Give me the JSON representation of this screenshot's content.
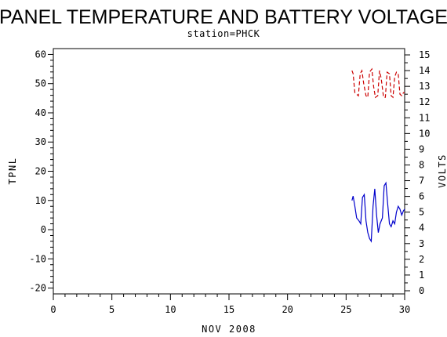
{
  "chart_data": {
    "type": "line",
    "title": "PANEL TEMPERATURE AND BATTERY VOLTAGE",
    "subtitle": "station=PHCK",
    "xlabel": "NOV 2008",
    "ylabel_left": "TPNL",
    "ylabel_right": "VOLTS",
    "xlim": [
      0,
      30
    ],
    "ylim_left": [
      -22,
      62
    ],
    "ylim_right": [
      -0.2,
      15.4
    ],
    "x_ticks": [
      "0",
      "5",
      "10",
      "15",
      "20",
      "25",
      "30"
    ],
    "y_left_ticks": [
      "-20",
      "-10",
      "0",
      "10",
      "20",
      "30",
      "40",
      "50",
      "60"
    ],
    "y_right_ticks": [
      "0",
      "1",
      "2",
      "3",
      "4",
      "5",
      "6",
      "7",
      "8",
      "9",
      "10",
      "11",
      "12",
      "13",
      "14",
      "15"
    ],
    "grid": false,
    "series": [
      {
        "axis": "left",
        "color": "#0000cc",
        "style": "solid",
        "x": [
          25.5,
          25.6,
          25.75,
          25.9,
          26.1,
          26.25,
          26.4,
          26.55,
          26.7,
          26.85,
          27.0,
          27.15,
          27.3,
          27.45,
          27.6,
          27.75,
          27.9,
          28.1,
          28.25,
          28.4,
          28.55,
          28.7,
          28.85,
          29.0,
          29.15,
          29.3,
          29.45,
          29.6,
          29.75,
          29.9,
          30.0
        ],
        "y": [
          10,
          11.5,
          8,
          4,
          3,
          2,
          11,
          12,
          3,
          -1,
          -3,
          -4,
          8,
          14,
          5,
          -1,
          2,
          4,
          15,
          16,
          9,
          2,
          1,
          3,
          2,
          6,
          8,
          7,
          5,
          6.5,
          7
        ]
      },
      {
        "axis": "right",
        "color": "#cc0000",
        "style": "dashed",
        "x": [
          25.5,
          25.6,
          25.75,
          25.9,
          26.05,
          26.2,
          26.35,
          26.5,
          26.7,
          26.85,
          27.0,
          27.2,
          27.35,
          27.5,
          27.7,
          27.85,
          28.0,
          28.2,
          28.35,
          28.5,
          28.7,
          28.85,
          29.0,
          29.15,
          29.3,
          29.45,
          29.6,
          29.75,
          29.9,
          30.0
        ],
        "y": [
          14.0,
          13.8,
          12.6,
          12.5,
          12.4,
          13.8,
          14.0,
          13.2,
          12.4,
          12.3,
          13.9,
          14.1,
          13.0,
          12.3,
          12.4,
          14.0,
          13.5,
          12.3,
          12.3,
          13.9,
          13.8,
          12.4,
          12.3,
          13.6,
          13.9,
          13.8,
          12.5,
          12.4,
          12.6,
          12.6
        ]
      }
    ]
  }
}
